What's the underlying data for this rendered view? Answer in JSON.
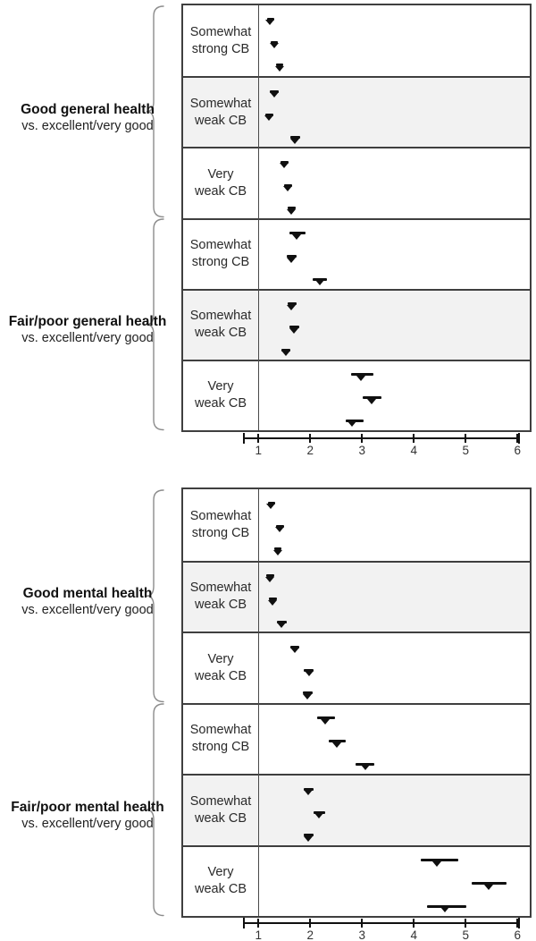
{
  "colors": {
    "marker": "#101010",
    "shaded_row": "#f2f2f2",
    "box_border": "#3f3f3f",
    "reference_line": "#4a4a4a",
    "brace": "#8c8c8c",
    "axis": "#101010",
    "text": "#2a2a2a"
  },
  "chart_data": [
    {
      "type": "scatter",
      "variant": "forest-plot",
      "title": "",
      "xlabel": "",
      "xlim": [
        1,
        6
      ],
      "xticks": [
        1,
        2,
        3,
        4,
        5,
        6
      ],
      "reference_line_x": 1,
      "grid": false,
      "legend_position": "none",
      "groups": [
        {
          "label": "Good general health",
          "sublabel": "vs. excellent/very good",
          "rows": [
            {
              "label_lines": [
                "Somewhat",
                "strong CB"
              ],
              "shaded": false,
              "points": [
                {
                  "x": 1.22,
                  "lo": 1.16,
                  "hi": 1.29
                },
                {
                  "x": 1.3,
                  "lo": 1.24,
                  "hi": 1.37
                },
                {
                  "x": 1.41,
                  "lo": 1.34,
                  "hi": 1.48
                }
              ]
            },
            {
              "label_lines": [
                "Somewhat",
                "weak CB"
              ],
              "shaded": true,
              "points": [
                {
                  "x": 1.3,
                  "lo": 1.22,
                  "hi": 1.39
                },
                {
                  "x": 1.2,
                  "lo": 1.13,
                  "hi": 1.28
                },
                {
                  "x": 1.7,
                  "lo": 1.61,
                  "hi": 1.8
                }
              ]
            },
            {
              "label_lines": [
                "Very",
                "weak CB"
              ],
              "shaded": false,
              "points": [
                {
                  "x": 1.5,
                  "lo": 1.43,
                  "hi": 1.58
                },
                {
                  "x": 1.57,
                  "lo": 1.5,
                  "hi": 1.65
                },
                {
                  "x": 1.64,
                  "lo": 1.56,
                  "hi": 1.72
                }
              ]
            }
          ]
        },
        {
          "label": "Fair/poor general health",
          "sublabel": "vs. excellent/very good",
          "rows": [
            {
              "label_lines": [
                "Somewhat",
                "strong CB"
              ],
              "shaded": false,
              "points": [
                {
                  "x": 1.73,
                  "lo": 1.6,
                  "hi": 1.91
                },
                {
                  "x": 1.64,
                  "lo": 1.55,
                  "hi": 1.74
                },
                {
                  "x": 2.18,
                  "lo": 2.05,
                  "hi": 2.33
                }
              ]
            },
            {
              "label_lines": [
                "Somewhat",
                "weak CB"
              ],
              "shaded": true,
              "points": [
                {
                  "x": 1.64,
                  "lo": 1.56,
                  "hi": 1.73
                },
                {
                  "x": 1.69,
                  "lo": 1.6,
                  "hi": 1.79
                },
                {
                  "x": 1.53,
                  "lo": 1.45,
                  "hi": 1.62
                }
              ]
            },
            {
              "label_lines": [
                "Very",
                "weak CB"
              ],
              "shaded": false,
              "points": [
                {
                  "x": 2.97,
                  "lo": 2.79,
                  "hi": 3.22
                },
                {
                  "x": 3.18,
                  "lo": 3.01,
                  "hi": 3.37
                },
                {
                  "x": 2.81,
                  "lo": 2.68,
                  "hi": 3.03
                }
              ]
            }
          ]
        }
      ]
    },
    {
      "type": "scatter",
      "variant": "forest-plot",
      "title": "",
      "xlabel": "",
      "xlim": [
        1,
        6
      ],
      "xticks": [
        1,
        2,
        3,
        4,
        5,
        6
      ],
      "reference_line_x": 1,
      "grid": false,
      "legend_position": "none",
      "groups": [
        {
          "label": "Good mental health",
          "sublabel": "vs. excellent/very good",
          "rows": [
            {
              "label_lines": [
                "Somewhat",
                "strong CB"
              ],
              "shaded": false,
              "points": [
                {
                  "x": 1.24,
                  "lo": 1.18,
                  "hi": 1.31
                },
                {
                  "x": 1.41,
                  "lo": 1.34,
                  "hi": 1.49
                },
                {
                  "x": 1.37,
                  "lo": 1.3,
                  "hi": 1.45
                }
              ]
            },
            {
              "label_lines": [
                "Somewhat",
                "weak CB"
              ],
              "shaded": true,
              "points": [
                {
                  "x": 1.22,
                  "lo": 1.15,
                  "hi": 1.3
                },
                {
                  "x": 1.27,
                  "lo": 1.2,
                  "hi": 1.35
                },
                {
                  "x": 1.44,
                  "lo": 1.35,
                  "hi": 1.54
                }
              ]
            },
            {
              "label_lines": [
                "Very",
                "weak CB"
              ],
              "shaded": false,
              "points": [
                {
                  "x": 1.7,
                  "lo": 1.62,
                  "hi": 1.79
                },
                {
                  "x": 1.97,
                  "lo": 1.88,
                  "hi": 2.07
                },
                {
                  "x": 1.95,
                  "lo": 1.86,
                  "hi": 2.05
                }
              ]
            }
          ]
        },
        {
          "label": "Fair/poor mental health",
          "sublabel": "vs. excellent/very good",
          "rows": [
            {
              "label_lines": [
                "Somewhat",
                "strong CB"
              ],
              "shaded": false,
              "points": [
                {
                  "x": 2.28,
                  "lo": 2.13,
                  "hi": 2.48
                },
                {
                  "x": 2.51,
                  "lo": 2.36,
                  "hi": 2.68
                },
                {
                  "x": 3.06,
                  "lo": 2.88,
                  "hi": 3.24
                }
              ]
            },
            {
              "label_lines": [
                "Somewhat",
                "weak CB"
              ],
              "shaded": true,
              "points": [
                {
                  "x": 1.96,
                  "lo": 1.87,
                  "hi": 2.06
                },
                {
                  "x": 2.17,
                  "lo": 2.07,
                  "hi": 2.28
                },
                {
                  "x": 1.96,
                  "lo": 1.87,
                  "hi": 2.06
                }
              ]
            },
            {
              "label_lines": [
                "Very",
                "weak CB"
              ],
              "shaded": false,
              "points": [
                {
                  "x": 4.45,
                  "lo": 4.14,
                  "hi": 4.86
                },
                {
                  "x": 5.44,
                  "lo": 5.12,
                  "hi": 5.79
                },
                {
                  "x": 4.59,
                  "lo": 4.26,
                  "hi": 5.01
                }
              ]
            }
          ]
        }
      ]
    }
  ]
}
